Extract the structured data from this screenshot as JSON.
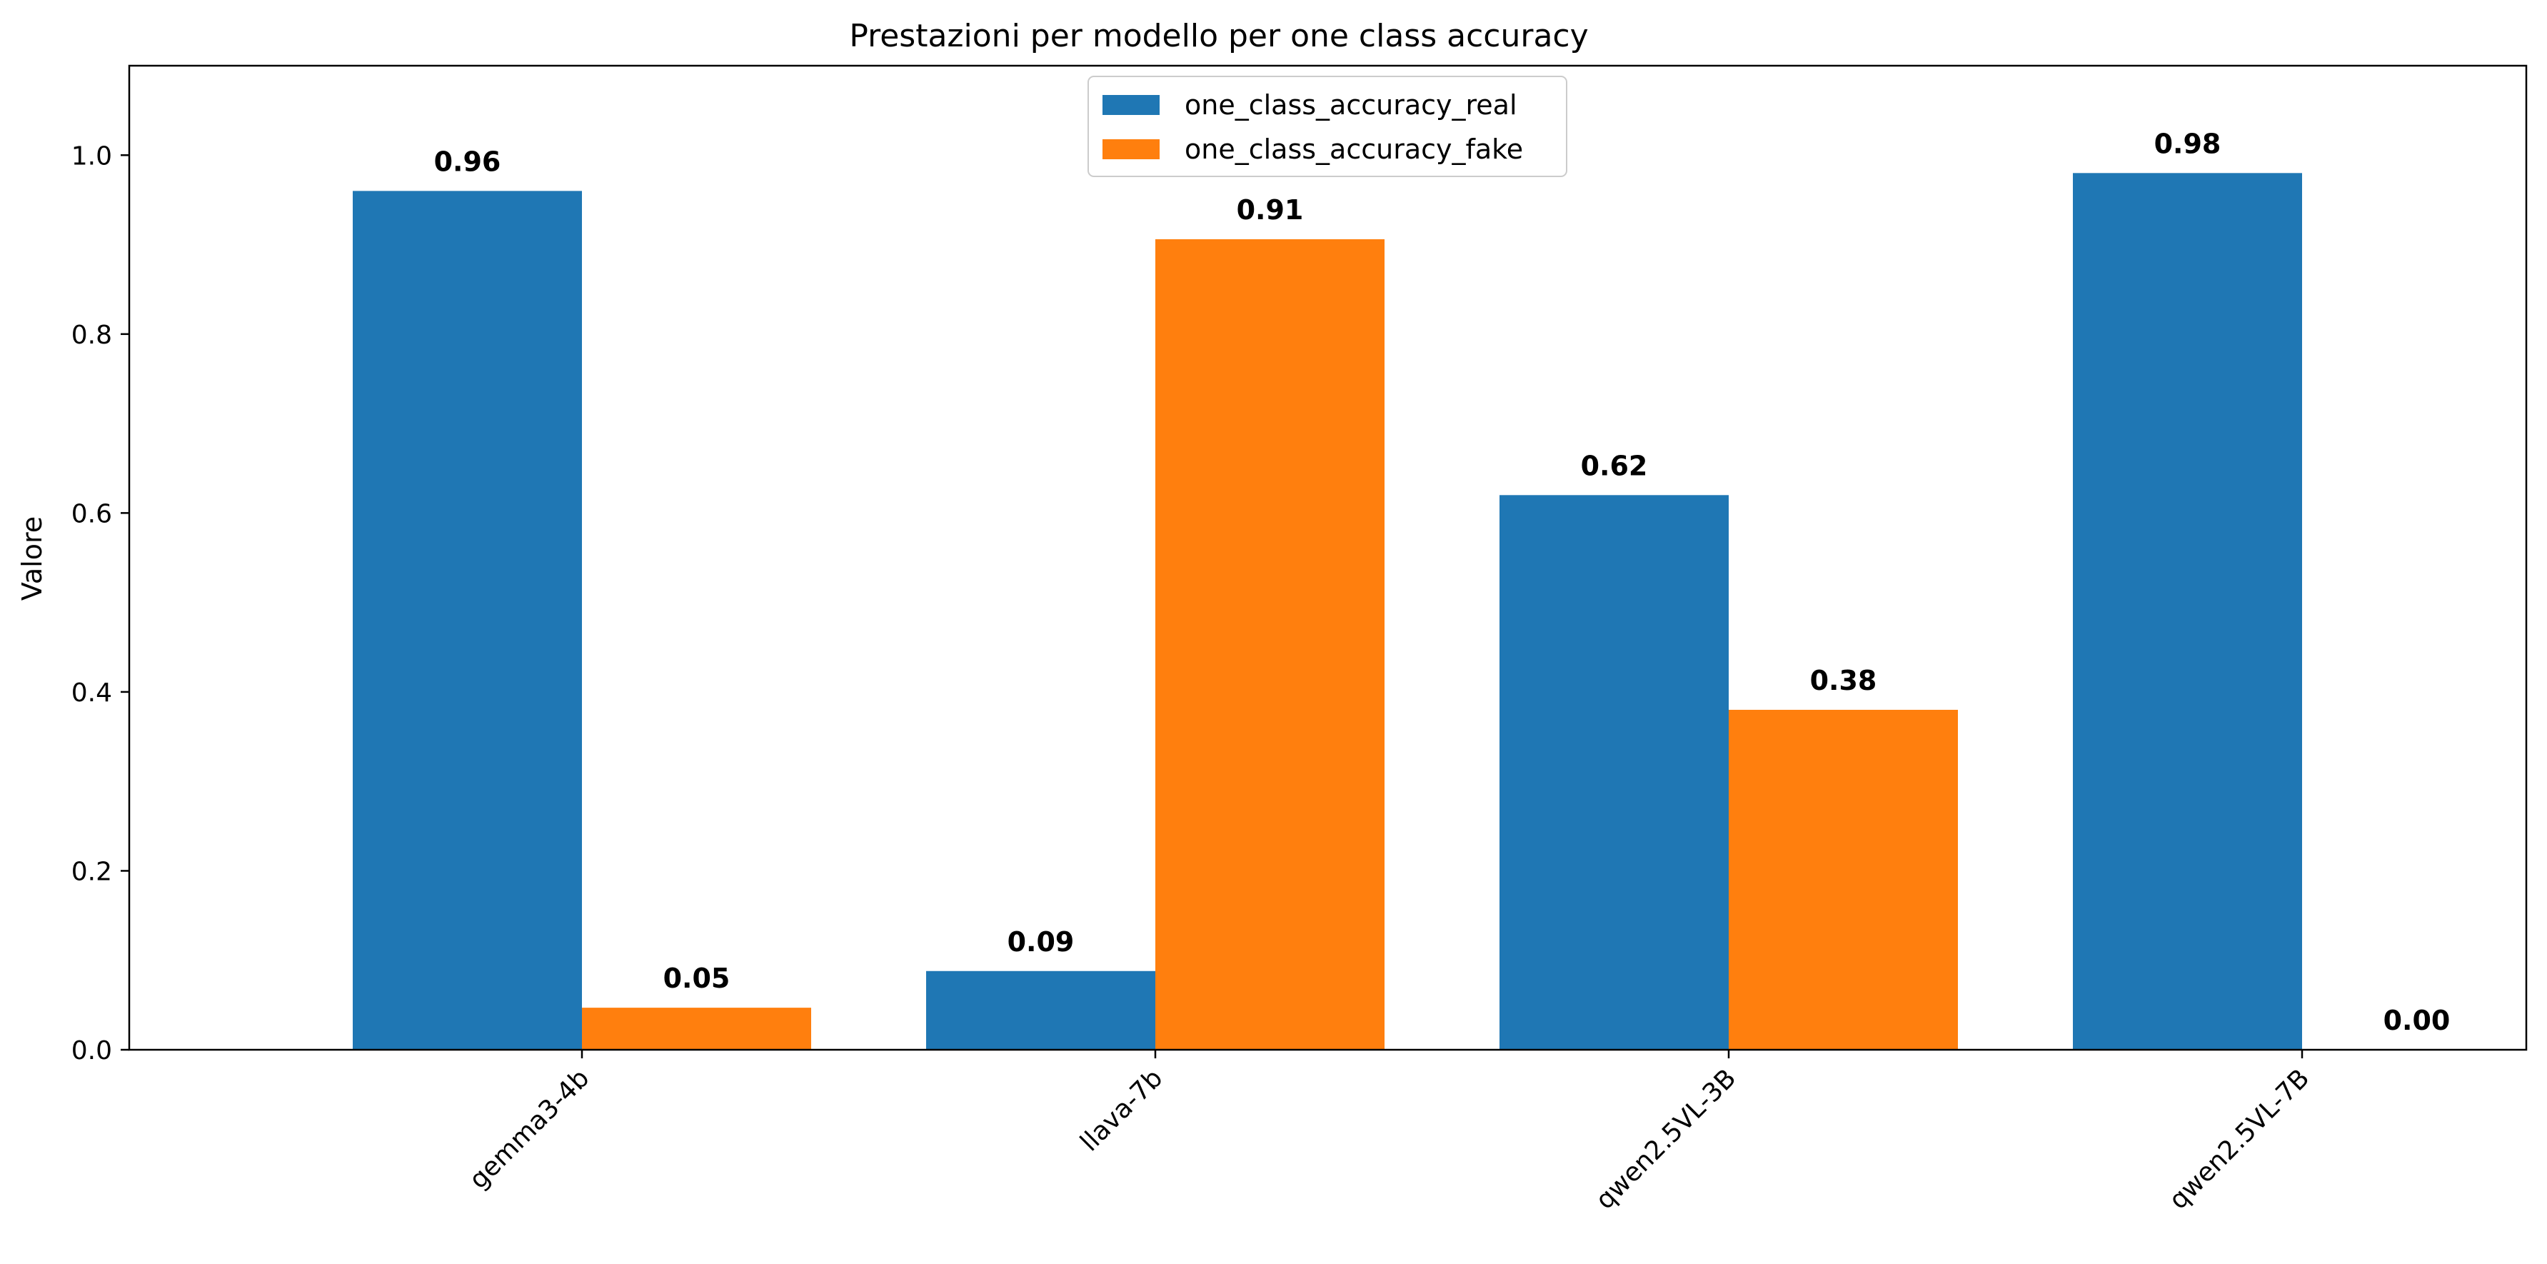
{
  "chart_data": {
    "type": "bar",
    "title": "Prestazioni per modello per one class accuracy",
    "xlabel": "",
    "ylabel": "Valore",
    "ylim": [
      0,
      1.1
    ],
    "yticks": [
      0.0,
      0.2,
      0.4,
      0.6,
      0.8,
      1.0
    ],
    "ytick_labels": [
      "0.0",
      "0.2",
      "0.4",
      "0.6",
      "0.8",
      "1.0"
    ],
    "categories": [
      "gemma3-4b",
      "llava-7b",
      "qwen2.5VL-3B",
      "qwen2.5VL-7B"
    ],
    "series": [
      {
        "name": "one_class_accuracy_real",
        "color": "#1f77b4",
        "values": [
          0.96,
          0.088,
          0.62,
          0.98
        ],
        "labels": [
          "0.96",
          "0.09",
          "0.62",
          "0.98"
        ]
      },
      {
        "name": "one_class_accuracy_fake",
        "color": "#ff7f0e",
        "values": [
          0.047,
          0.906,
          0.38,
          0.0
        ],
        "labels": [
          "0.05",
          "0.91",
          "0.38",
          "0.00"
        ]
      }
    ],
    "legend": "upper-center",
    "grid": false
  }
}
